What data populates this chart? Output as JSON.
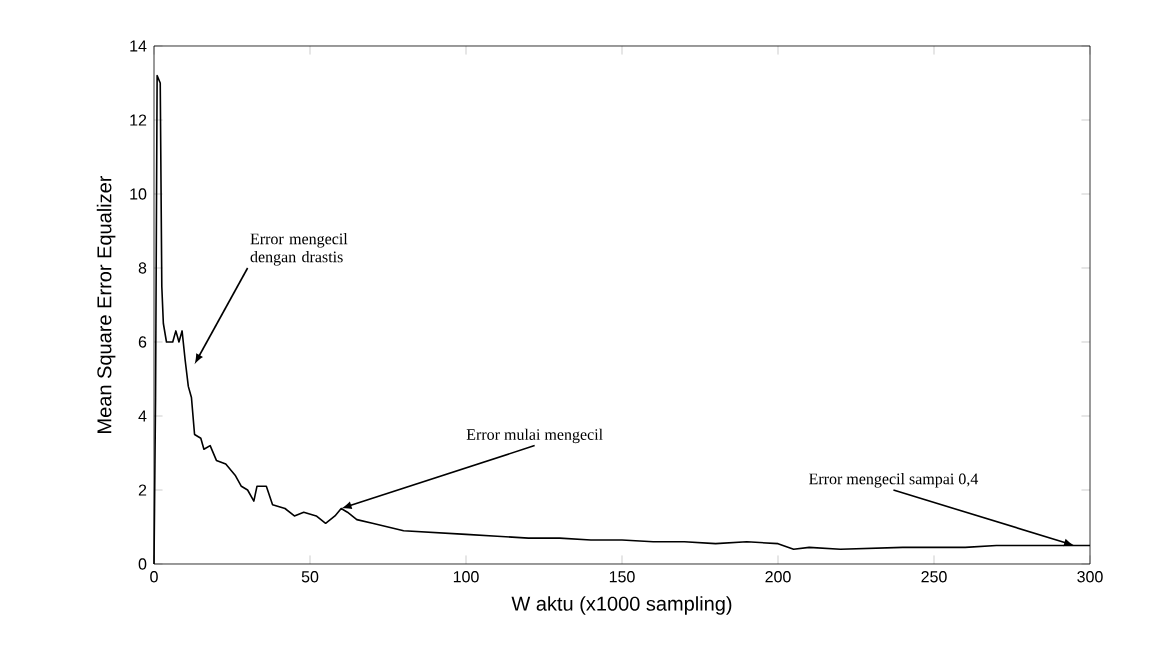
{
  "chart_data": {
    "type": "line",
    "xlabel": "W aktu (x1000 sampling)",
    "ylabel": "Mean Square Error Equalizer",
    "x": [
      0,
      0.5,
      1,
      2,
      2.5,
      3,
      4,
      6,
      7,
      8,
      9,
      10,
      11,
      12,
      13,
      15,
      16,
      18,
      20,
      23,
      26,
      28,
      30,
      32,
      33,
      36,
      38,
      42,
      45,
      48,
      52,
      55,
      58,
      60,
      62,
      65,
      70,
      75,
      80,
      90,
      100,
      110,
      120,
      130,
      140,
      150,
      160,
      170,
      180,
      190,
      200,
      205,
      210,
      220,
      240,
      260,
      270,
      280,
      290,
      300
    ],
    "values": [
      0,
      4.5,
      13.2,
      13,
      7.5,
      6.5,
      6,
      6,
      6.3,
      6,
      6.3,
      5.5,
      4.8,
      4.5,
      3.5,
      3.4,
      3.1,
      3.2,
      2.8,
      2.7,
      2.4,
      2.1,
      2.0,
      1.7,
      2.1,
      2.1,
      1.6,
      1.5,
      1.3,
      1.4,
      1.3,
      1.1,
      1.3,
      1.5,
      1.4,
      1.2,
      1.1,
      1.0,
      0.9,
      0.85,
      0.8,
      0.75,
      0.7,
      0.7,
      0.65,
      0.65,
      0.6,
      0.6,
      0.55,
      0.6,
      0.55,
      0.4,
      0.45,
      0.4,
      0.45,
      0.45,
      0.5,
      0.5,
      0.5,
      0.5
    ],
    "color": "#000000",
    "xlim": [
      0,
      300
    ],
    "ylim": [
      0,
      14
    ],
    "xticks": [
      0,
      50,
      100,
      150,
      200,
      250,
      300
    ],
    "yticks": [
      0,
      2,
      4,
      6,
      8,
      10,
      12,
      14
    ],
    "annotations": [
      {
        "text": "Error mengecil dengan drastis",
        "x": 13,
        "y": 5.4
      },
      {
        "text": "Error mulai mengecil",
        "x": 60,
        "y": 1.5
      },
      {
        "text": "Error mengecil sampai 0,4",
        "x": 295,
        "y": 0.5
      }
    ]
  }
}
